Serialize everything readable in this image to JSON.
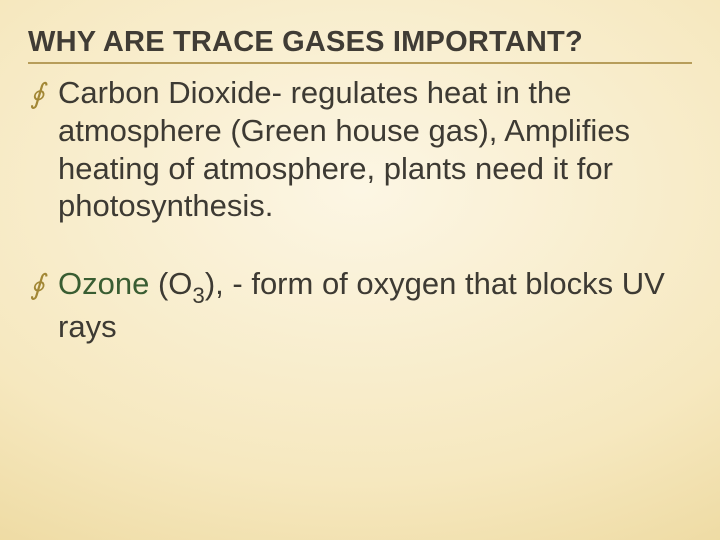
{
  "slide": {
    "title": "WHY ARE TRACE GASES IMPORTANT?",
    "title_color": "#403c35",
    "title_fontsize": 29,
    "title_rule_color": "#b79d5a",
    "background": {
      "type": "radial-gradient",
      "inner": "#fcf6e4",
      "mid": "#f6e8bf",
      "outer": "#e1c77d"
    },
    "bullet_glyph": "∮",
    "bullet_color": "#a28735",
    "body_fontsize": 31,
    "body_color": "#3d3a33",
    "line_height": 1.22,
    "items": [
      {
        "lead": "Carbon Dioxide",
        "lead_color": "#3d3a33",
        "rest": "- regulates heat in the atmosphere (Green house gas), Amplifies heating of atmosphere, plants need it for photosynthesis."
      },
      {
        "lead": "Ozone",
        "lead_color": "#395d32",
        "formula_prefix": " (O",
        "formula_sub": "3",
        "formula_suffix": "), ",
        "rest": "- form of oxygen that blocks UV rays"
      }
    ]
  }
}
